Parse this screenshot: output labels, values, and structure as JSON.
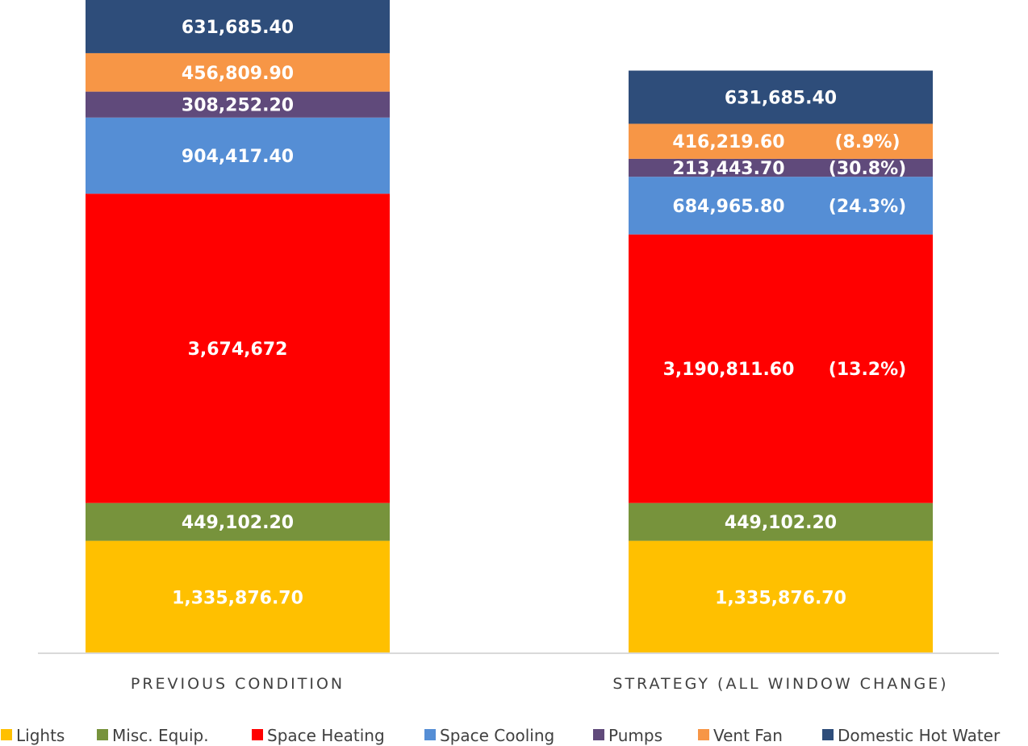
{
  "chart_data": {
    "type": "bar",
    "stacked": true,
    "categories": [
      "PREVIOUS CONDITION",
      "STRATEGY (ALL WINDOW CHANGE)"
    ],
    "series": [
      {
        "name": "Lights",
        "color": "#FFC000",
        "values": [
          1335876.7,
          1335876.7
        ],
        "labels": [
          "1,335,876.70",
          "1,335,876.70"
        ],
        "change_labels": [
          "",
          ""
        ]
      },
      {
        "name": "Misc. Equip.",
        "color": "#77933C",
        "values": [
          449102.2,
          449102.2
        ],
        "labels": [
          "449,102.20",
          "449,102.20"
        ],
        "change_labels": [
          "",
          ""
        ]
      },
      {
        "name": "Space Heating",
        "color": "#FF0000",
        "values": [
          3674672,
          3190811.6
        ],
        "labels": [
          "3,674,672",
          "3,190,811.60"
        ],
        "change_labels": [
          "",
          "(13.2%)"
        ]
      },
      {
        "name": "Space Cooling",
        "color": "#558ED5",
        "values": [
          904417.4,
          684965.8
        ],
        "labels": [
          "904,417.40",
          "684,965.80"
        ],
        "change_labels": [
          "",
          "(24.3%)"
        ]
      },
      {
        "name": "Pumps",
        "color": "#604A7B",
        "values": [
          308252.2,
          213443.7
        ],
        "labels": [
          "308,252.20",
          "213,443.70"
        ],
        "change_labels": [
          "",
          "(30.8%)"
        ]
      },
      {
        "name": "Vent Fan",
        "color": "#F79646",
        "values": [
          456809.9,
          416219.6
        ],
        "labels": [
          "456,809.90",
          "416,219.60"
        ],
        "change_labels": [
          "",
          "(8.9%)"
        ]
      },
      {
        "name": "Domestic Hot Water",
        "color": "#2E4D7A",
        "values": [
          631685.4,
          631685.4
        ],
        "labels": [
          "631,685.40",
          "631,685.40"
        ],
        "change_labels": [
          "",
          ""
        ]
      }
    ],
    "ylim": [
      0,
      7760815.2
    ],
    "grid": false,
    "legend_position": "bottom"
  }
}
